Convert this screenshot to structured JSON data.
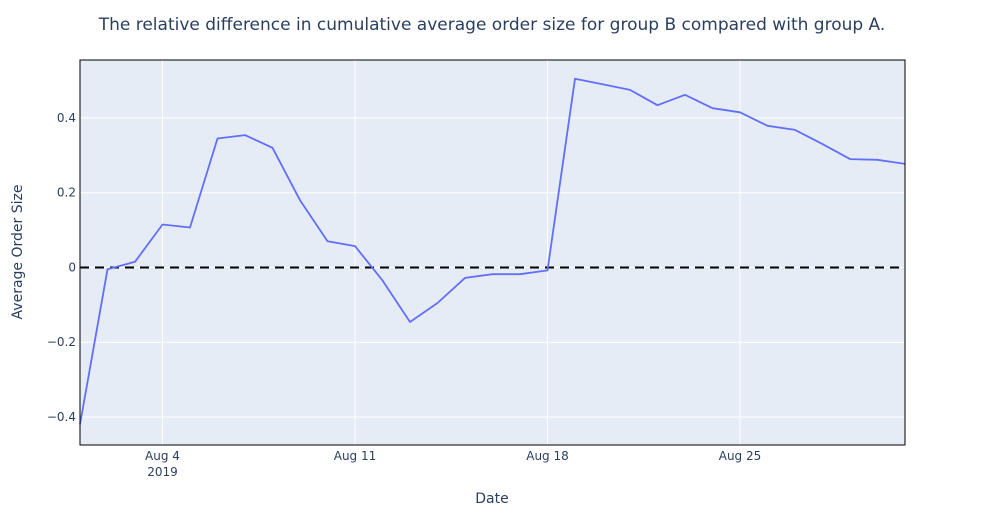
{
  "chart_data": {
    "type": "line",
    "title": "The relative difference in cumulative average order size for group B compared with group A.",
    "xlabel": "Date",
    "ylabel": "Average Order Size",
    "x_year_label": "2019",
    "x": [
      "2019-08-01",
      "2019-08-02",
      "2019-08-03",
      "2019-08-04",
      "2019-08-05",
      "2019-08-06",
      "2019-08-07",
      "2019-08-08",
      "2019-08-09",
      "2019-08-10",
      "2019-08-11",
      "2019-08-12",
      "2019-08-13",
      "2019-08-14",
      "2019-08-15",
      "2019-08-16",
      "2019-08-17",
      "2019-08-18",
      "2019-08-19",
      "2019-08-20",
      "2019-08-21",
      "2019-08-22",
      "2019-08-23",
      "2019-08-24",
      "2019-08-25",
      "2019-08-26",
      "2019-08-27",
      "2019-08-28",
      "2019-08-29",
      "2019-08-30",
      "2019-08-31"
    ],
    "series": [
      {
        "values": [
          -0.42,
          -0.005,
          0.015,
          0.115,
          0.107,
          0.345,
          0.354,
          0.32,
          0.18,
          0.07,
          0.057,
          -0.035,
          -0.146,
          -0.095,
          -0.028,
          -0.018,
          -0.018,
          -0.008,
          0.505,
          0.49,
          0.475,
          0.434,
          0.462,
          0.426,
          0.415,
          0.379,
          0.368,
          0.33,
          0.29,
          0.288,
          0.277
        ],
        "color": "#636efa"
      }
    ],
    "xticks": [
      {
        "date": "2019-08-04",
        "label": "Aug 4"
      },
      {
        "date": "2019-08-11",
        "label": "Aug 11"
      },
      {
        "date": "2019-08-18",
        "label": "Aug 18"
      },
      {
        "date": "2019-08-25",
        "label": "Aug 25"
      }
    ],
    "yticks": [
      {
        "value": -0.4,
        "label": "−0.4"
      },
      {
        "value": -0.2,
        "label": "−0.2"
      },
      {
        "value": 0,
        "label": "0"
      },
      {
        "value": 0.2,
        "label": "0.2"
      },
      {
        "value": 0.4,
        "label": "0.4"
      }
    ],
    "xlim": [
      "2019-08-01",
      "2019-08-31"
    ],
    "ylim": [
      -0.475,
      0.555
    ],
    "reference_line": {
      "y": 0,
      "style": "dashed",
      "color": "#000000"
    },
    "grid": true,
    "plot_background": "#e5ecf6",
    "legend": "none"
  }
}
